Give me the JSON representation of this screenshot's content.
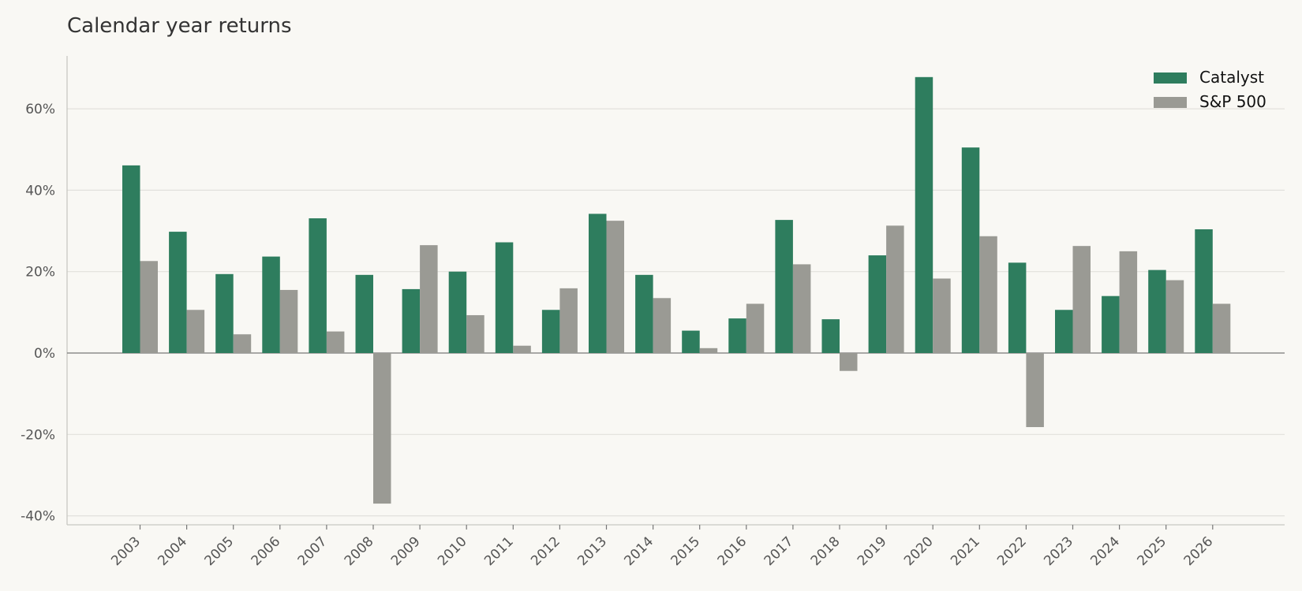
{
  "chart_data": {
    "type": "bar",
    "title": "Calendar year returns",
    "xlabel": "",
    "ylabel": "",
    "categories": [
      "2003",
      "2004",
      "2005",
      "2006",
      "2007",
      "2008",
      "2009",
      "2010",
      "2011",
      "2012",
      "2013",
      "2014",
      "2015",
      "2016",
      "2017",
      "2018",
      "2019",
      "2020",
      "2021",
      "2022",
      "2023",
      "2024",
      "2025",
      "2026"
    ],
    "series": [
      {
        "name": "Catalyst",
        "color": "#2e7d5e",
        "values": [
          46.1,
          29.8,
          19.4,
          23.7,
          33.1,
          19.2,
          15.7,
          20.0,
          27.2,
          10.6,
          34.2,
          19.2,
          5.5,
          8.5,
          32.7,
          8.3,
          24.0,
          67.8,
          50.5,
          22.2,
          10.6,
          14.0,
          20.4,
          30.4
        ]
      },
      {
        "name": "S&P 500",
        "color": "#9a9a94",
        "values": [
          22.6,
          10.6,
          4.6,
          15.5,
          5.3,
          -37.0,
          26.5,
          9.3,
          1.8,
          15.9,
          32.5,
          13.5,
          1.2,
          12.1,
          21.8,
          -4.4,
          31.3,
          18.3,
          28.7,
          -18.2,
          26.3,
          25.0,
          17.9,
          12.1
        ]
      }
    ],
    "ylim": [
      -42,
      73
    ],
    "yticks": [
      -40,
      -20,
      0,
      20,
      40,
      60
    ],
    "ytick_labels": [
      "-40%",
      "-20%",
      "0%",
      "20%",
      "40%",
      "60%"
    ],
    "grid": "horizontal",
    "legend": "top-right"
  }
}
